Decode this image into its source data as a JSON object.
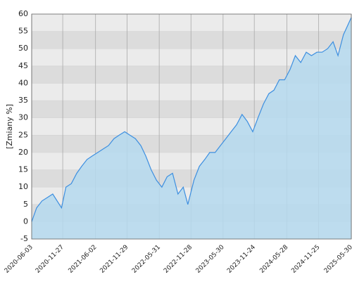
{
  "chart_data": {
    "type": "area",
    "y_label": "[Zmiany %]",
    "x": [
      "2020-06-03",
      "2020-07-01",
      "2020-08-01",
      "2020-09-01",
      "2020-10-01",
      "2020-11-20",
      "2020-12-15",
      "2021-01-15",
      "2021-02-15",
      "2021-03-15",
      "2021-04-15",
      "2021-05-15",
      "2021-06-15",
      "2021-07-15",
      "2021-08-15",
      "2021-09-15",
      "2021-10-15",
      "2021-11-15",
      "2021-12-15",
      "2022-01-15",
      "2022-02-15",
      "2022-03-15",
      "2022-04-15",
      "2022-05-15",
      "2022-06-15",
      "2022-07-15",
      "2022-08-15",
      "2022-09-15",
      "2022-10-15",
      "2022-11-10",
      "2022-12-15",
      "2023-01-15",
      "2023-02-15",
      "2023-03-15",
      "2023-04-15",
      "2023-05-15",
      "2023-06-15",
      "2023-07-15",
      "2023-08-15",
      "2023-09-15",
      "2023-10-15",
      "2023-11-15",
      "2023-12-15",
      "2024-01-15",
      "2024-02-15",
      "2024-03-15",
      "2024-04-15",
      "2024-05-15",
      "2024-06-15",
      "2024-07-15",
      "2024-08-15",
      "2024-09-15",
      "2024-10-15",
      "2024-11-15",
      "2024-12-15",
      "2025-01-15",
      "2025-02-15",
      "2025-03-15",
      "2025-04-15",
      "2025-05-30"
    ],
    "values": [
      0,
      4,
      6,
      7,
      8,
      4,
      10,
      11,
      14,
      16,
      18,
      19,
      20,
      21,
      22,
      24,
      25,
      26,
      25,
      24,
      22,
      19,
      15,
      12,
      10,
      13,
      14,
      8,
      10,
      5,
      12,
      16,
      18,
      20,
      20,
      22,
      24,
      26,
      28,
      31,
      29,
      26,
      30,
      34,
      37,
      38,
      41,
      41,
      44,
      48,
      46,
      49,
      48,
      49,
      49,
      50,
      52,
      48,
      54,
      59
    ],
    "color": "#3d8fe0",
    "fill": "#b5d9ee",
    "xlim": [
      "2020-06-03",
      "2025-05-30"
    ],
    "xticks": [
      "2020-06-03",
      "2020-11-27",
      "2021-06-02",
      "2021-11-29",
      "2022-05-31",
      "2022-11-28",
      "2023-05-30",
      "2023-11-24",
      "2024-05-28",
      "2024-11-25",
      "2025-05-30"
    ],
    "ylim": [
      -5,
      60
    ],
    "yticks": [
      -5,
      0,
      5,
      10,
      15,
      20,
      25,
      30,
      35,
      40,
      45,
      50,
      55,
      60
    ],
    "grid": true
  }
}
